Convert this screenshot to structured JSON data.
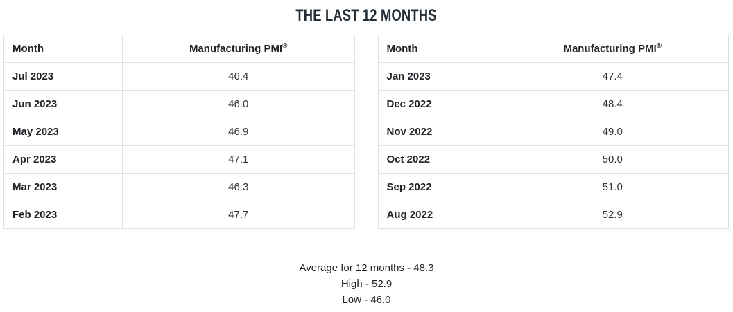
{
  "title": "THE LAST 12 MONTHS",
  "header": {
    "month": "Month",
    "pmi": "Manufacturing PMI",
    "registered": "®"
  },
  "left_table": {
    "rows": [
      {
        "month": "Jul 2023",
        "pmi": "46.4"
      },
      {
        "month": "Jun 2023",
        "pmi": "46.0"
      },
      {
        "month": "May 2023",
        "pmi": "46.9"
      },
      {
        "month": "Apr 2023",
        "pmi": "47.1"
      },
      {
        "month": "Mar 2023",
        "pmi": "46.3"
      },
      {
        "month": "Feb 2023",
        "pmi": "47.7"
      }
    ]
  },
  "right_table": {
    "rows": [
      {
        "month": "Jan 2023",
        "pmi": "47.4"
      },
      {
        "month": "Dec 2022",
        "pmi": "48.4"
      },
      {
        "month": "Nov 2022",
        "pmi": "49.0"
      },
      {
        "month": "Oct 2022",
        "pmi": "50.0"
      },
      {
        "month": "Sep 2022",
        "pmi": "51.0"
      },
      {
        "month": "Aug 2022",
        "pmi": "52.9"
      }
    ]
  },
  "summary": {
    "average": "Average for 12 months - 48.3",
    "high": "High - 52.9",
    "low": "Low - 46.0"
  },
  "colors": {
    "title": "#242d36",
    "text": "#212529",
    "value_text": "#333333",
    "table_border": "#dee2e6",
    "divider": "#e9e9e9",
    "background": "#ffffff"
  },
  "chart_data": {
    "type": "table",
    "title": "THE LAST 12 MONTHS",
    "columns": [
      "Month",
      "Manufacturing PMI®"
    ],
    "rows": [
      [
        "Jul 2023",
        46.4
      ],
      [
        "Jun 2023",
        46.0
      ],
      [
        "May 2023",
        46.9
      ],
      [
        "Apr 2023",
        47.1
      ],
      [
        "Mar 2023",
        46.3
      ],
      [
        "Feb 2023",
        47.7
      ],
      [
        "Jan 2023",
        47.4
      ],
      [
        "Dec 2022",
        48.4
      ],
      [
        "Nov 2022",
        49.0
      ],
      [
        "Oct 2022",
        50.0
      ],
      [
        "Sep 2022",
        51.0
      ],
      [
        "Aug 2022",
        52.9
      ]
    ],
    "average_12_months": 48.3,
    "high": 52.9,
    "low": 46.0,
    "layout": "two side-by-side six-row tables, most recent month first"
  }
}
